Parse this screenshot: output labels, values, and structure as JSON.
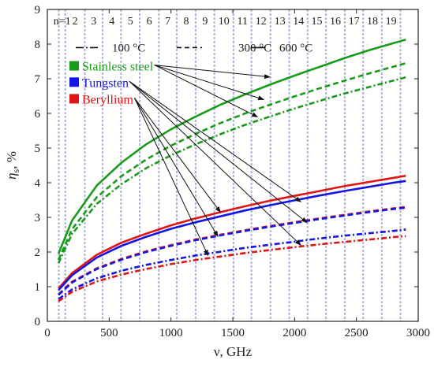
{
  "chart_data": {
    "type": "line",
    "xlabel": "ν, GHz",
    "ylabel_symbol": "η",
    "ylabel_sub": "s",
    "ylabel_unit": ", %",
    "xlim": [
      0,
      3000
    ],
    "ylim": [
      0,
      9
    ],
    "xticks": [
      0,
      500,
      1000,
      1500,
      2000,
      2500,
      3000
    ],
    "yticks": [
      0,
      1,
      2,
      3,
      4,
      5,
      6,
      7,
      8,
      9
    ],
    "grid": false,
    "mode_lines": {
      "x": [
        93,
        145,
        303,
        447,
        596,
        747,
        902,
        1047,
        1200,
        1351,
        1506,
        1651,
        1805,
        1957,
        2105,
        2254,
        2406,
        2555,
        2705,
        2856
      ],
      "labels": [
        "n=1",
        "2",
        "3",
        "4",
        "5",
        "6",
        "7",
        "8",
        "9",
        "10",
        "11",
        "12",
        "13",
        "14",
        "15",
        "16",
        "17",
        "18",
        "19"
      ],
      "color": "#a9b6d8"
    },
    "temperature_legend": [
      {
        "label": "100 °C",
        "dash": "dashdot"
      },
      {
        "label": "300 °C",
        "dash": "dashed"
      },
      {
        "label": "600 °C",
        "dash": "solid"
      }
    ],
    "material_legend": [
      {
        "label": "Stainless steel",
        "color": "#1a9a1a"
      },
      {
        "label": "Tungsten",
        "color": "#1414e6"
      },
      {
        "label": "Beryllium",
        "color": "#e01414"
      }
    ],
    "x": [
      90,
      200,
      400,
      600,
      800,
      1000,
      1200,
      1400,
      1600,
      1800,
      2000,
      2200,
      2400,
      2600,
      2800,
      2900
    ],
    "series": [
      {
        "material": "Stainless steel",
        "temperature": "600 °C",
        "color": "#1a9a1a",
        "dash": "solid",
        "values": [
          1.95,
          2.91,
          3.92,
          4.58,
          5.11,
          5.54,
          5.91,
          6.25,
          6.55,
          6.83,
          7.09,
          7.34,
          7.59,
          7.82,
          8.03,
          8.13
        ]
      },
      {
        "material": "Stainless steel",
        "temperature": "300 °C",
        "color": "#1a9a1a",
        "dash": "dashed",
        "values": [
          1.77,
          2.66,
          3.58,
          4.19,
          4.67,
          5.07,
          5.41,
          5.72,
          6.0,
          6.25,
          6.49,
          6.72,
          6.94,
          7.15,
          7.35,
          7.45
        ]
      },
      {
        "material": "Stainless steel",
        "temperature": "100 °C",
        "color": "#1a9a1a",
        "dash": "dashdot",
        "values": [
          1.68,
          2.52,
          3.39,
          3.96,
          4.42,
          4.79,
          5.11,
          5.4,
          5.67,
          5.91,
          6.14,
          6.36,
          6.57,
          6.76,
          6.95,
          7.04
        ]
      },
      {
        "material": "Beryllium",
        "temperature": "600 °C",
        "color": "#e01414",
        "dash": "solid",
        "values": [
          0.95,
          1.39,
          1.92,
          2.27,
          2.53,
          2.77,
          2.97,
          3.15,
          3.32,
          3.48,
          3.62,
          3.76,
          3.9,
          4.02,
          4.14,
          4.2
        ]
      },
      {
        "material": "Tungsten",
        "temperature": "600 °C",
        "color": "#1414e6",
        "dash": "solid",
        "values": [
          0.9,
          1.33,
          1.84,
          2.18,
          2.44,
          2.67,
          2.86,
          3.03,
          3.2,
          3.35,
          3.49,
          3.63,
          3.76,
          3.88,
          4.0,
          4.05
        ]
      },
      {
        "material": "Beryllium",
        "temperature": "300 °C",
        "color": "#e01414",
        "dash": "dashed",
        "values": [
          0.78,
          1.14,
          1.53,
          1.8,
          2.02,
          2.2,
          2.36,
          2.5,
          2.63,
          2.75,
          2.86,
          2.97,
          3.07,
          3.17,
          3.26,
          3.3
        ]
      },
      {
        "material": "Tungsten",
        "temperature": "300 °C",
        "color": "#1414e6",
        "dash": "dashed",
        "values": [
          0.76,
          1.12,
          1.51,
          1.78,
          2.0,
          2.18,
          2.34,
          2.48,
          2.61,
          2.73,
          2.84,
          2.95,
          3.05,
          3.15,
          3.24,
          3.28
        ]
      },
      {
        "material": "Tungsten",
        "temperature": "100 °C",
        "color": "#1414e6",
        "dash": "dashdot",
        "values": [
          0.64,
          0.92,
          1.24,
          1.46,
          1.63,
          1.77,
          1.9,
          2.01,
          2.12,
          2.21,
          2.3,
          2.39,
          2.47,
          2.54,
          2.61,
          2.65
        ]
      },
      {
        "material": "Beryllium",
        "temperature": "100 °C",
        "color": "#e01414",
        "dash": "dashdot",
        "values": [
          0.58,
          0.85,
          1.15,
          1.35,
          1.51,
          1.65,
          1.77,
          1.87,
          1.97,
          2.06,
          2.14,
          2.22,
          2.29,
          2.36,
          2.43,
          2.46
        ]
      }
    ],
    "annotation_targets": {
      "Stainless steel": [
        [
          1800,
          7.05
        ],
        [
          1750,
          6.4
        ],
        [
          1700,
          5.9
        ]
      ],
      "Tungsten": [
        [
          2050,
          3.45
        ],
        [
          2100,
          2.85
        ],
        [
          2050,
          2.2
        ]
      ],
      "Beryllium": [
        [
          1400,
          3.15
        ],
        [
          1380,
          2.45
        ],
        [
          1300,
          1.9
        ]
      ]
    }
  }
}
